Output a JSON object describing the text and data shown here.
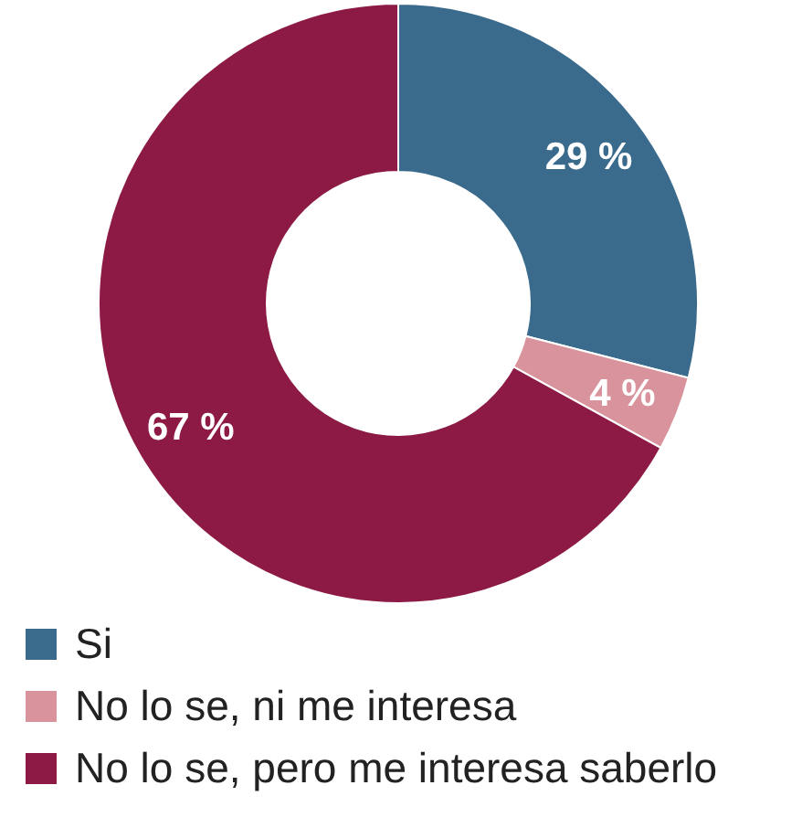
{
  "chart_data": {
    "type": "donut",
    "categories": [
      "Si",
      "No lo se, ni me interesa",
      "No lo se, pero me interesa saberlo"
    ],
    "values": [
      29,
      4,
      67
    ],
    "colors": [
      "#3a6a8c",
      "#d9939c",
      "#8c1a44"
    ],
    "value_labels": [
      "29 %",
      "4 %",
      "67 %"
    ],
    "legend": "bottom"
  }
}
